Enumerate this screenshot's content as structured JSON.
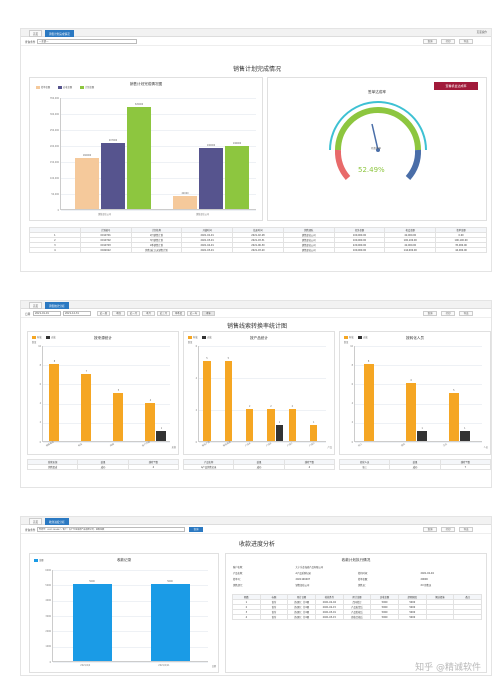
{
  "s1": {
    "tabs": [
      "首页",
      "销售计划完成情况"
    ],
    "topright": "页面操作",
    "filter_label": "查询条件",
    "filter_ph": "—全部—",
    "buttons": [
      "查询",
      "打印",
      "导出"
    ],
    "title": "销售计划完成情况",
    "chart": {
      "title": "销售计划完成情况图",
      "series": [
        {
          "name": "签单金额",
          "color": "#f5c99b",
          "values": [
            160000,
            42000
          ]
        },
        {
          "name": "应收金额",
          "color": "#56548e",
          "values": [
            207000,
            190000
          ]
        },
        {
          "name": "计划金额",
          "color": "#8dc63f",
          "values": [
            320000,
            196000
          ]
        }
      ],
      "categories": [
        "销售部总公司",
        "销售部总公司"
      ],
      "data_labels": [
        [
          "160000",
          "207000",
          "320000"
        ],
        [
          "42000",
          "190000",
          "196000"
        ]
      ],
      "yticks": [
        "0",
        "50,000",
        "100,000",
        "150,000",
        "200,000",
        "250,000",
        "300,000",
        "350,000"
      ],
      "ymax": 350000
    },
    "gauge": {
      "title": "签单达成率",
      "value": 52.49,
      "center_text": "已签单率",
      "value_text": "52.49%",
      "badge": "查看机会达成率",
      "color": "#3ec1d3"
    },
    "table": {
      "headers": [
        "",
        "计划编号",
        "计划名称",
        "开始时间",
        "结束时间",
        "销售团队",
        "任务金额",
        "机会金额",
        "签单金额"
      ],
      "rows": [
        [
          "1",
          "0010701",
          "2月销售计划",
          "2021-02-01",
          "2021-02-28",
          "销售部总公司",
          "100,000.00",
          "42,000.00",
          "0.00"
        ],
        [
          "2",
          "0010702",
          "3月销售计划",
          "2021-03-01",
          "2021-03-31",
          "销售部总公司",
          "100,000.00",
          "100,100.00",
          "100,100.00"
        ],
        [
          "3",
          "0010703",
          "2季销售计划",
          "2021-04-01",
          "2021-06-30",
          "销售部总公司",
          "220,000.00",
          "42,000.00",
          "35,000.00"
        ],
        [
          "4",
          "0022022",
          "销售(返工)天销售计划",
          "2021-03-01",
          "2021-03-20",
          "销售部总公司",
          "100,000.00",
          "144,000.00",
          "44,000.00"
        ]
      ]
    }
  },
  "s2": {
    "tabs": [
      "首页",
      "销售统计分析"
    ],
    "date_label": "日期",
    "date_from": "2021-01-01",
    "date_to": "2021-12-31",
    "quick": [
      "近一周",
      "本周",
      "近一月",
      "本月",
      "近三月",
      "本季度",
      "近一年",
      "本年"
    ],
    "buttons": [
      "查询",
      "打印",
      "导出"
    ],
    "title": "销售线索转换率统计图",
    "legend": [
      "有效",
      "无效"
    ],
    "colors": {
      "valid": "#f5a623",
      "invalid": "#333"
    },
    "charts": [
      {
        "title": "按来源统计",
        "unit": "数量",
        "xunit": "来源",
        "cats": [
          "销售渠道",
          "电话",
          "网络",
          "客户介绍"
        ],
        "valid": [
          8,
          7,
          5,
          4
        ],
        "invalid": [
          0,
          0,
          0,
          1
        ],
        "ymax": 10
      },
      {
        "title": "按产品统计",
        "unit": "数量",
        "xunit": "产品",
        "cats": [
          "智能产品",
          "智能家居",
          "产品A",
          "产品B",
          "产品C",
          "产品D"
        ],
        "valid": [
          5,
          5,
          2,
          2,
          2,
          1
        ],
        "invalid": [
          0,
          0,
          0,
          1,
          0,
          0
        ],
        "ymax": 6
      },
      {
        "title": "按转化人员",
        "unit": "数量",
        "xunit": "人员",
        "cats": [
          "张三",
          "李四",
          "王五"
        ],
        "valid": [
          8,
          6,
          5
        ],
        "invalid": [
          0,
          1,
          1
        ],
        "ymax": 10
      }
    ],
    "tables": [
      {
        "headers": [
          "线索来源",
          "结果",
          "线索个数"
        ],
        "rows": [
          [
            "销售渠道",
            "成功",
            "4"
          ]
        ]
      },
      {
        "headers": [
          "产品名称",
          "结果",
          "线索个数"
        ],
        "rows": [
          [
            "A产品销售记录",
            "成功",
            "4"
          ]
        ]
      },
      {
        "headers": [
          "转化人员",
          "结果",
          "线索个数"
        ],
        "rows": [
          [
            "张三",
            "成功",
            "7"
          ]
        ]
      }
    ]
  },
  "s3": {
    "tabs": [
      "首页",
      "收款进度分析"
    ],
    "query_label": "查询条件",
    "query_value": "合同号：2021100407 - 客户：大宁乐金海商产品有限公司 - 销售金额",
    "query_btn": "查询",
    "buttons": [
      "查询",
      "打印",
      "导出"
    ],
    "title": "收款进度分析",
    "chart": {
      "title": "收款记录",
      "legend": "金额",
      "color": "#1a9be6",
      "cats": [
        "2021/2/4",
        "2021/2/11"
      ],
      "values": [
        5000,
        5000
      ],
      "yticks": [
        "0",
        "1000",
        "2000",
        "3000",
        "4000",
        "5000",
        "6000"
      ],
      "ymax": 6000,
      "xunit": "日期"
    },
    "info_title": "收款计划执行情况",
    "info": [
      [
        "客户名称：",
        "大宁乐金海商产品有限公司",
        "",
        ""
      ],
      [
        "产品名称：",
        "A产品采购记录",
        "签约时间：",
        "2021-02-04"
      ],
      [
        "签单号：",
        "2021100407",
        "签单金额：",
        "20000"
      ],
      [
        "销售部门：",
        "销售部总公司",
        "销售员：",
        "XX 销售员"
      ]
    ],
    "plan": {
      "headers": [
        "期数",
        "标题",
        "预计日期",
        "收款条件",
        "预计金额",
        "实收金额",
        "超期原因",
        "解决措施",
        "备注"
      ],
      "rows": [
        [
          "1",
          "首付",
          "首(期)：共4期",
          "2021-02-04",
          "合同签订",
          "5000",
          "5000",
          "",
          ""
        ],
        [
          "2",
          "首付",
          "首(期)：共4期",
          "2021-02-15",
          "产品发货后",
          "5000",
          "5000",
          "",
          ""
        ],
        [
          "3",
          "首付",
          "首(期)：共4期",
          "2021-03-01",
          "产品签收后",
          "5000",
          "5000",
          "",
          ""
        ],
        [
          "4",
          "首付",
          "首(期)：共4期",
          "2021-03-15",
          "验收合格后",
          "5000",
          "5000",
          "",
          ""
        ]
      ]
    },
    "watermark": "知乎 @精诚软件"
  }
}
